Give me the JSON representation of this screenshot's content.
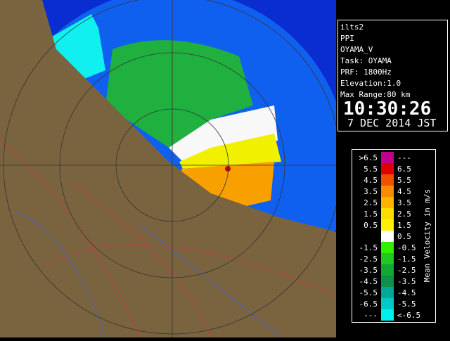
{
  "info": {
    "lines": [
      "ilts2",
      "PPI",
      "OYAMA_V",
      "Task: OYAMA",
      "PRF: 1800Hz",
      "Elevation:1.0",
      "Max Range:80 km"
    ],
    "time": "10:30:26",
    "date": "7 DEC 2014 JST"
  },
  "legend": {
    "title": "Mean Velocity in m/s",
    "rows": [
      {
        "left": ">6.5",
        "right": "---",
        "color": "#c0008c"
      },
      {
        "left": "5.5",
        "right": "6.5",
        "color": "#e00000"
      },
      {
        "left": "4.5",
        "right": "5.5",
        "color": "#f05000"
      },
      {
        "left": "3.5",
        "right": "4.5",
        "color": "#f88c00"
      },
      {
        "left": "2.5",
        "right": "3.5",
        "color": "#ffb400"
      },
      {
        "left": "1.5",
        "right": "2.5",
        "color": "#ffdc00"
      },
      {
        "left": "0.5",
        "right": "1.5",
        "color": "#fff000"
      },
      {
        "right": "0.5",
        "color": "#ffffff"
      },
      {
        "left": "-1.5",
        "right": "-0.5",
        "color": "#30f000"
      },
      {
        "left": "-2.5",
        "right": "-1.5",
        "color": "#20c820"
      },
      {
        "left": "-3.5",
        "right": "-2.5",
        "color": "#10a830"
      },
      {
        "left": "-4.5",
        "right": "-3.5",
        "color": "#109048"
      },
      {
        "left": "-5.5",
        "right": "-4.5",
        "color": "#00a898"
      },
      {
        "left": "-6.5",
        "right": "-5.5",
        "color": "#00c8c8"
      },
      {
        "left": "---",
        "right": "<-6.5",
        "color": "#00f0f0"
      }
    ]
  }
}
